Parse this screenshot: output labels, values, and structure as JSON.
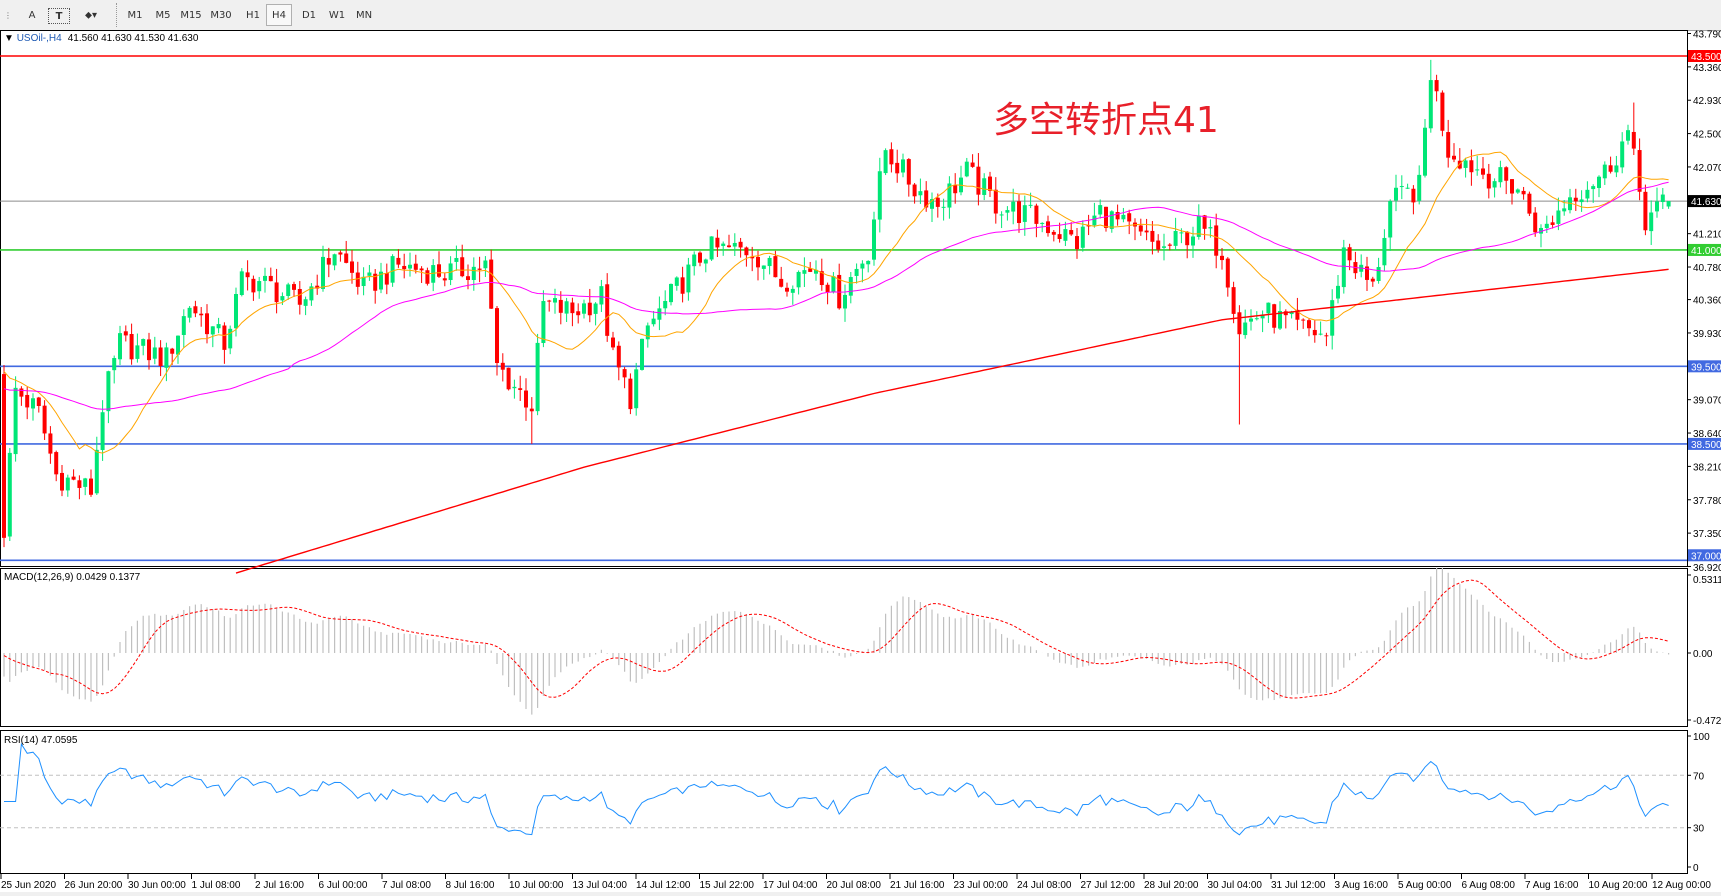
{
  "toolbar": {
    "tools": [
      {
        "label": "A",
        "icon": "text-label-icon"
      },
      {
        "label": "T",
        "icon": "text-box-icon"
      },
      {
        "label": "",
        "icon": "arrows-dropdown-icon"
      }
    ],
    "timeframes": [
      "M1",
      "M5",
      "M15",
      "M30",
      "H1",
      "H4",
      "D1",
      "W1",
      "MN"
    ],
    "active_timeframe": "H4"
  },
  "main": {
    "symbol": "USOil-,H4",
    "ohlc": "41.560 41.630 41.530 41.630",
    "annotation": "多空转折点41",
    "annotation_color": "#e8202a",
    "price_ticks": [
      "43.790",
      "43.360",
      "42.930",
      "42.500",
      "42.070",
      "41.210",
      "40.780",
      "40.360",
      "39.930",
      "39.070",
      "38.640",
      "38.210",
      "37.780",
      "37.350",
      "36.920"
    ],
    "current_price": "41.630",
    "levels": [
      {
        "price": "43.500",
        "color": "#ff0000"
      },
      {
        "price": "41.000",
        "color": "#32cd32"
      },
      {
        "price": "39.500",
        "color": "#4169e1"
      },
      {
        "price": "38.500",
        "color": "#4169e1"
      },
      {
        "price": "37.000",
        "color": "#4169e1"
      }
    ],
    "bull_color": "#00e676",
    "bear_color": "#ff0000"
  },
  "chart_data": {
    "type": "candlestick",
    "bar_count": 288,
    "close_keypoints": [
      [
        0,
        37.4
      ],
      [
        2,
        39.2
      ],
      [
        6,
        38.9
      ],
      [
        9,
        38.1
      ],
      [
        15,
        37.9
      ],
      [
        17,
        39.0
      ],
      [
        20,
        39.8
      ],
      [
        28,
        39.6
      ],
      [
        32,
        40.3
      ],
      [
        38,
        39.8
      ],
      [
        41,
        40.6
      ],
      [
        44,
        40.6
      ],
      [
        51,
        40.3
      ],
      [
        57,
        41.0
      ],
      [
        62,
        40.5
      ],
      [
        68,
        40.8
      ],
      [
        76,
        40.7
      ],
      [
        83,
        40.8
      ],
      [
        85,
        39.5
      ],
      [
        91,
        39.0
      ],
      [
        93,
        40.3
      ],
      [
        98,
        40.2
      ],
      [
        103,
        40.4
      ],
      [
        105,
        39.6
      ],
      [
        108,
        39.1
      ],
      [
        111,
        40.0
      ],
      [
        115,
        40.4
      ],
      [
        121,
        41.0
      ],
      [
        129,
        41.0
      ],
      [
        134,
        40.6
      ],
      [
        140,
        40.8
      ],
      [
        144,
        40.4
      ],
      [
        149,
        41.0
      ],
      [
        152,
        42.3
      ],
      [
        157,
        41.8
      ],
      [
        161,
        41.6
      ],
      [
        166,
        42.0
      ],
      [
        171,
        41.6
      ],
      [
        178,
        41.4
      ],
      [
        185,
        41.1
      ],
      [
        189,
        41.5
      ],
      [
        195,
        41.2
      ],
      [
        200,
        41.0
      ],
      [
        206,
        41.3
      ],
      [
        210,
        41.0
      ],
      [
        213,
        40.0
      ],
      [
        217,
        40.2
      ],
      [
        223,
        40.0
      ],
      [
        228,
        39.9
      ],
      [
        231,
        41.0
      ],
      [
        236,
        40.5
      ],
      [
        239,
        41.6
      ],
      [
        244,
        41.8
      ],
      [
        246,
        43.3
      ],
      [
        249,
        42.3
      ],
      [
        255,
        42.0
      ],
      [
        261,
        41.8
      ],
      [
        265,
        41.2
      ],
      [
        270,
        41.7
      ],
      [
        276,
        42.0
      ],
      [
        280,
        42.5
      ],
      [
        283,
        41.4
      ],
      [
        287,
        41.63
      ]
    ],
    "extremes": [
      [
        91,
        "low",
        38.5
      ],
      [
        213,
        "low",
        38.75
      ],
      [
        246,
        "high",
        43.45
      ],
      [
        281,
        "high",
        42.9
      ]
    ],
    "ma_slow_keypoints": [
      [
        45,
        36.95
      ],
      [
        100,
        38.2
      ],
      [
        150,
        39.15
      ],
      [
        210,
        40.1
      ],
      [
        287,
        40.75
      ]
    ],
    "x_labels": [
      "25 Jun 2020",
      "26 Jun 20:00",
      "30 Jun 00:00",
      "1 Jul 08:00",
      "2 Jul 16:00",
      "6 Jul 00:00",
      "7 Jul 08:00",
      "8 Jul 16:00",
      "10 Jul 00:00",
      "13 Jul 04:00",
      "14 Jul 12:00",
      "15 Jul 22:00",
      "17 Jul 04:00",
      "20 Jul 08:00",
      "21 Jul 16:00",
      "23 Jul 00:00",
      "24 Jul 08:00",
      "27 Jul 12:00",
      "28 Jul 20:00",
      "30 Jul 04:00",
      "31 Jul 12:00",
      "3 Aug 16:00",
      "5 Aug 00:00",
      "6 Aug 08:00",
      "7 Aug 16:00",
      "10 Aug 20:00",
      "12 Aug 00:00"
    ],
    "ylim": [
      36.92,
      43.79
    ]
  },
  "macd": {
    "title": "MACD(12,26,9) 0.0429 0.1377",
    "ticks": [
      "0.5311",
      "0.00",
      "-0.4728"
    ]
  },
  "rsi": {
    "title": "RSI(14) 47.0595",
    "ticks": [
      "100",
      "70",
      "30",
      "0"
    ]
  }
}
